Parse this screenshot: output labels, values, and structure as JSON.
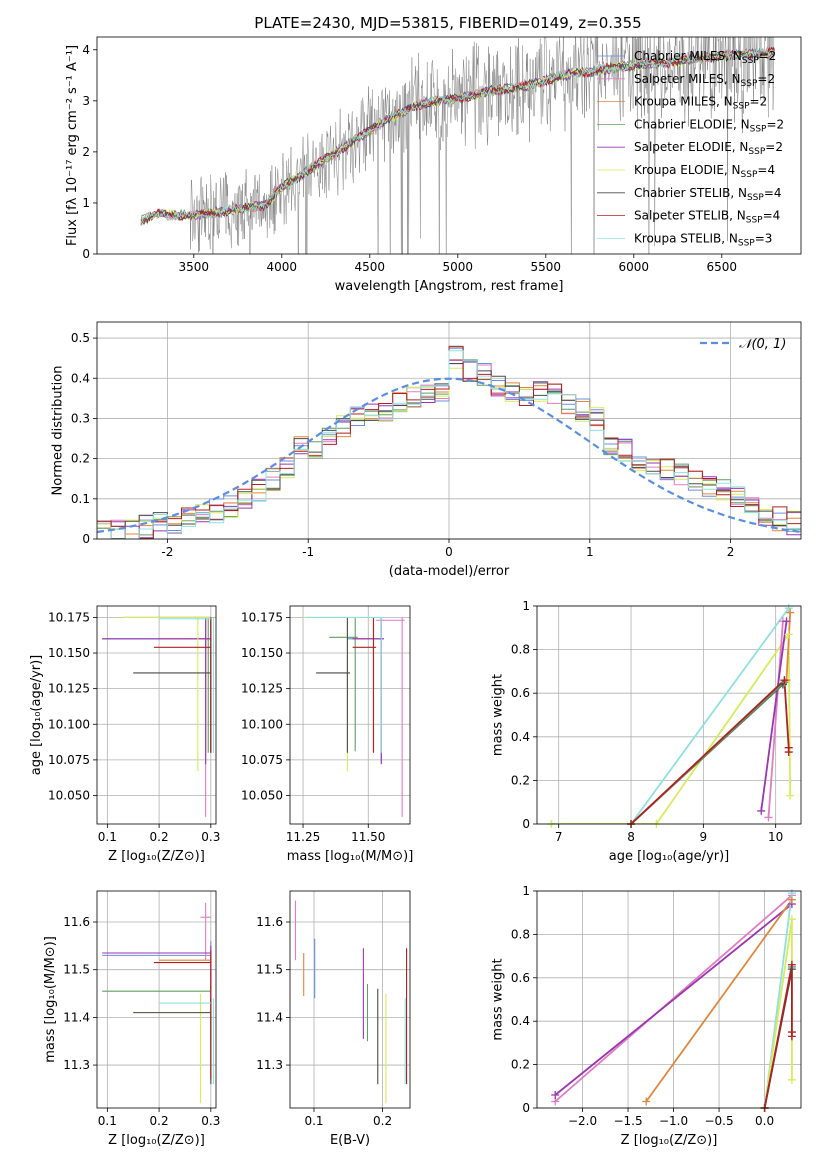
{
  "figure": {
    "title": "PLATE=2430, MJD=53815, FIBERID=0149, z=0.355"
  },
  "colors": {
    "Chabrier MILES": "#6a8fe0",
    "Salpeter MILES": "#e07cc4",
    "Kroupa MILES": "#e0873a",
    "Chabrier ELODIE": "#5f9e64",
    "Salpeter ELODIE": "#9a36b0",
    "Kroupa ELODIE": "#d6ec5a",
    "Chabrier STELIB": "#4a4a4a",
    "Salpeter STELIB": "#b02020",
    "Kroupa STELIB": "#8fe0e0",
    "data": "#808080",
    "normal": "#5b8ee0"
  },
  "chart_data": [
    {
      "id": "spectrum",
      "type": "line",
      "title": "PLATE=2430, MJD=53815, FIBERID=0149, z=0.355",
      "xlabel": "wavelength [Angstrom, rest frame]",
      "ylabel": "Flux [fλ 10⁻¹⁷ erg cm⁻² s⁻¹ A⁻¹]",
      "xlim": [
        2950,
        6950
      ],
      "ylim": [
        0,
        4.25
      ],
      "xticks": [
        3500,
        4000,
        4500,
        5000,
        5500,
        6000,
        6500
      ],
      "yticks": [
        0,
        1,
        2,
        3,
        4
      ],
      "legend": "upper right",
      "legend_entries": [
        "Chabrier MILES, N_SSP=2",
        "Salpeter MILES, N_SSP=2",
        "Kroupa MILES, N_SSP=2",
        "Chabrier ELODIE, N_SSP=2",
        "Salpeter ELODIE, N_SSP=2",
        "Kroupa ELODIE, N_SSP=4",
        "Chabrier STELIB, N_SSP=4",
        "Salpeter STELIB, N_SSP=4",
        "Kroupa STELIB, N_SSP=3"
      ],
      "model_continuum": {
        "x": [
          3200,
          3300,
          3500,
          3700,
          3900,
          4000,
          4200,
          4400,
          4600,
          4800,
          5000,
          5200,
          5400,
          5600,
          5800,
          6000,
          6200,
          6400,
          6600,
          6800
        ],
        "y": [
          0.65,
          0.78,
          0.75,
          0.85,
          0.95,
          1.3,
          1.75,
          2.2,
          2.65,
          2.95,
          3.05,
          3.2,
          3.3,
          3.5,
          3.6,
          3.7,
          3.75,
          3.85,
          3.9,
          3.95
        ]
      },
      "data_range": [
        3200,
        6800
      ]
    },
    {
      "id": "residuals",
      "type": "histogram",
      "xlabel": "(data-model)/error",
      "ylabel": "Normed distribution",
      "xlim": [
        -2.5,
        2.5
      ],
      "ylim": [
        0,
        0.54
      ],
      "xticks": [
        -2,
        -1,
        0,
        1,
        2
      ],
      "yticks": [
        0.0,
        0.1,
        0.2,
        0.3,
        0.4,
        0.5
      ],
      "legend": "upper right",
      "legend_entries": [
        "𝒩(0, 1)"
      ],
      "bin_edges": [
        -2.5,
        -2.4,
        -2.3,
        -2.2,
        -2.1,
        -2.0,
        -1.9,
        -1.8,
        -1.7,
        -1.6,
        -1.5,
        -1.4,
        -1.3,
        -1.2,
        -1.1,
        -1.0,
        -0.9,
        -0.8,
        -0.7,
        -0.6,
        -0.5,
        -0.4,
        -0.3,
        -0.2,
        -0.1,
        0.0,
        0.1,
        0.2,
        0.3,
        0.4,
        0.5,
        0.6,
        0.7,
        0.8,
        0.9,
        1.0,
        1.1,
        1.2,
        1.3,
        1.4,
        1.5,
        1.6,
        1.7,
        1.8,
        1.9,
        2.0,
        2.1,
        2.2,
        2.3,
        2.4,
        2.5
      ],
      "hist_mean": [
        0.02,
        0.02,
        0.02,
        0.03,
        0.04,
        0.04,
        0.05,
        0.06,
        0.07,
        0.08,
        0.1,
        0.12,
        0.15,
        0.18,
        0.24,
        0.22,
        0.26,
        0.28,
        0.3,
        0.31,
        0.32,
        0.34,
        0.35,
        0.36,
        0.37,
        0.45,
        0.42,
        0.41,
        0.38,
        0.36,
        0.35,
        0.37,
        0.36,
        0.33,
        0.32,
        0.3,
        0.24,
        0.22,
        0.2,
        0.18,
        0.17,
        0.16,
        0.14,
        0.13,
        0.12,
        0.1,
        0.08,
        0.06,
        0.05,
        0.04
      ]
    },
    {
      "id": "age-vs-Z",
      "type": "errorbar",
      "xlabel": "Z [log₁₀(Z/Z⊙)]",
      "ylabel": "age  [log₁₀(age/yr)]",
      "xlim": [
        0.08,
        0.31
      ],
      "ylim": [
        10.03,
        10.183
      ],
      "xticks": [
        0.1,
        0.2,
        0.3
      ],
      "xtick_labels": [
        "0.1",
        "0.2",
        "0.3"
      ],
      "yticks": [
        10.05,
        10.075,
        10.1,
        10.125,
        10.15,
        10.175
      ],
      "ytick_labels": [
        "10.050",
        "10.075",
        "10.100",
        "10.125",
        "10.150",
        "10.175"
      ],
      "points": [
        {
          "m": "Chabrier MILES",
          "x": 0.3,
          "y": 10.16,
          "xlo": 0.09,
          "xhi": 0.3,
          "ylo": 10.08,
          "yhi": 10.175
        },
        {
          "m": "Salpeter MILES",
          "x": 0.29,
          "y": 10.175,
          "xlo": 0.2,
          "xhi": 0.3,
          "ylo": 10.035,
          "yhi": 10.175
        },
        {
          "m": "Kroupa MILES",
          "x": 0.29,
          "y": 10.16,
          "xlo": 0.2,
          "xhi": 0.3,
          "ylo": 10.08,
          "yhi": 10.175
        },
        {
          "m": "Chabrier ELODIE",
          "x": 0.295,
          "y": 10.175,
          "xlo": 0.13,
          "xhi": 0.3,
          "ylo": 10.08,
          "yhi": 10.175
        },
        {
          "m": "Salpeter ELODIE",
          "x": 0.29,
          "y": 10.16,
          "xlo": 0.09,
          "xhi": 0.3,
          "ylo": 10.072,
          "yhi": 10.175
        },
        {
          "m": "Kroupa ELODIE",
          "x": 0.275,
          "y": 10.175,
          "xlo": 0.13,
          "xhi": 0.3,
          "ylo": 10.067,
          "yhi": 10.175
        },
        {
          "m": "Chabrier STELIB",
          "x": 0.3,
          "y": 10.136,
          "xlo": 0.15,
          "xhi": 0.3,
          "ylo": 10.08,
          "yhi": 10.175
        },
        {
          "m": "Salpeter STELIB",
          "x": 0.3,
          "y": 10.154,
          "xlo": 0.19,
          "xhi": 0.3,
          "ylo": 10.08,
          "yhi": 10.175
        },
        {
          "m": "Kroupa STELIB",
          "x": 0.305,
          "y": 10.174,
          "xlo": 0.2,
          "xhi": 0.3,
          "ylo": 10.08,
          "yhi": 10.175
        }
      ]
    },
    {
      "id": "age-vs-mass",
      "type": "errorbar",
      "xlabel": "mass [log₁₀(M/M⊙)]",
      "ylabel": "",
      "xlim": [
        11.2,
        11.66
      ],
      "ylim": [
        10.03,
        10.183
      ],
      "xticks": [
        11.25,
        11.5
      ],
      "xtick_labels": [
        "11.25",
        "11.50"
      ],
      "yticks": [
        10.05,
        10.075,
        10.1,
        10.125,
        10.15,
        10.175
      ],
      "ytick_labels": [
        "10.050",
        "10.075",
        "10.100",
        "10.125",
        "10.150",
        "10.175"
      ],
      "points": [
        {
          "m": "Chabrier MILES",
          "x": 11.55,
          "y": 10.16,
          "xlo": 11.42,
          "xhi": 11.56,
          "ylo": 10.073,
          "yhi": 10.175
        },
        {
          "m": "Salpeter MILES",
          "x": 11.63,
          "y": 10.173,
          "xlo": 11.53,
          "xhi": 11.64,
          "ylo": 10.035,
          "yhi": 10.175
        },
        {
          "m": "Kroupa MILES",
          "x": 11.52,
          "y": 10.16,
          "xlo": 11.44,
          "xhi": 11.52,
          "ylo": 10.08,
          "yhi": 10.175
        },
        {
          "m": "Chabrier ELODIE",
          "x": 11.45,
          "y": 10.161,
          "xlo": 11.35,
          "xhi": 11.46,
          "ylo": 10.081,
          "yhi": 10.175
        },
        {
          "m": "Salpeter ELODIE",
          "x": 11.55,
          "y": 10.16,
          "xlo": 11.44,
          "xhi": 11.56,
          "ylo": 10.072,
          "yhi": 10.175
        },
        {
          "m": "Kroupa ELODIE",
          "x": 11.42,
          "y": 10.175,
          "xlo": 11.25,
          "xhi": 11.44,
          "ylo": 10.067,
          "yhi": 10.175
        },
        {
          "m": "Chabrier STELIB",
          "x": 11.42,
          "y": 10.136,
          "xlo": 11.3,
          "xhi": 11.43,
          "ylo": 10.08,
          "yhi": 10.175
        },
        {
          "m": "Salpeter STELIB",
          "x": 11.52,
          "y": 10.154,
          "xlo": 11.44,
          "xhi": 11.53,
          "ylo": 10.08,
          "yhi": 10.175
        },
        {
          "m": "Kroupa STELIB",
          "x": 11.55,
          "y": 10.175,
          "xlo": 11.26,
          "xhi": 11.56,
          "ylo": 10.08,
          "yhi": 10.175
        }
      ]
    },
    {
      "id": "weight-vs-age",
      "type": "line",
      "xlabel": "age  [log₁₀(age/yr)]",
      "ylabel": "mass weight",
      "xlim": [
        6.7,
        10.35
      ],
      "ylim": [
        0,
        1
      ],
      "xticks": [
        7,
        8,
        9,
        10
      ],
      "yticks": [
        0.0,
        0.2,
        0.4,
        0.6,
        0.8,
        1.0
      ],
      "series": [
        {
          "m": "Kroupa STELIB",
          "x": [
            6.9,
            8.0,
            10.18
          ],
          "y": [
            0.0,
            0.0,
            0.99
          ]
        },
        {
          "m": "Kroupa ELODIE",
          "x": [
            6.9,
            8.35,
            10.18,
            10.2
          ],
          "y": [
            0.0,
            0.0,
            0.87,
            0.13
          ]
        },
        {
          "m": "Salpeter MILES",
          "x": [
            9.9,
            10.1
          ],
          "y": [
            0.03,
            0.93
          ]
        },
        {
          "m": "Salpeter ELODIE",
          "x": [
            9.8,
            10.15
          ],
          "y": [
            0.06,
            0.93
          ]
        },
        {
          "m": "Kroupa MILES",
          "x": [
            8.0,
            10.15,
            10.2
          ],
          "y": [
            0.0,
            0.66,
            0.97
          ]
        },
        {
          "m": "Chabrier STELIB",
          "x": [
            8.0,
            10.1
          ],
          "y": [
            0.0,
            0.64
          ]
        },
        {
          "m": "Chabrier ELODIE",
          "x": [
            8.0,
            10.12
          ],
          "y": [
            0.0,
            0.65
          ]
        },
        {
          "m": "Salpeter STELIB",
          "x": [
            8.0,
            10.12,
            10.18,
            10.18
          ],
          "y": [
            0.0,
            0.66,
            0.35,
            0.33
          ]
        }
      ]
    },
    {
      "id": "mass-vs-Z",
      "type": "errorbar",
      "xlabel": "Z [log₁₀(Z/Z⊙)]",
      "ylabel": "mass [log₁₀(M/M⊙)]",
      "xlim": [
        0.08,
        0.31
      ],
      "ylim": [
        11.21,
        11.665
      ],
      "xticks": [
        0.1,
        0.2,
        0.3
      ],
      "xtick_labels": [
        "0.1",
        "0.2",
        "0.3"
      ],
      "yticks": [
        11.3,
        11.4,
        11.5,
        11.6
      ],
      "ytick_labels": [
        "11.3",
        "11.4",
        "11.5",
        "11.6"
      ],
      "points": [
        {
          "m": "Chabrier MILES",
          "x": 0.3,
          "y": 11.53,
          "xlo": 0.09,
          "xhi": 0.3,
          "ylo": 11.45,
          "yhi": 11.56
        },
        {
          "m": "Salpeter MILES",
          "x": 0.29,
          "y": 11.61,
          "xlo": 0.28,
          "xhi": 0.3,
          "ylo": 11.52,
          "yhi": 11.64
        },
        {
          "m": "Kroupa MILES",
          "x": 0.3,
          "y": 11.52,
          "xlo": 0.2,
          "xhi": 0.3,
          "ylo": 11.45,
          "yhi": 11.53
        },
        {
          "m": "Chabrier ELODIE",
          "x": 0.3,
          "y": 11.455,
          "xlo": 0.09,
          "xhi": 0.3,
          "ylo": 11.35,
          "yhi": 11.47
        },
        {
          "m": "Salpeter ELODIE",
          "x": 0.3,
          "y": 11.535,
          "xlo": 0.09,
          "xhi": 0.3,
          "ylo": 11.43,
          "yhi": 11.55
        },
        {
          "m": "Kroupa ELODIE",
          "x": 0.28,
          "y": 11.41,
          "xlo": 0.15,
          "xhi": 0.3,
          "ylo": 11.22,
          "yhi": 11.45
        },
        {
          "m": "Chabrier STELIB",
          "x": 0.3,
          "y": 11.41,
          "xlo": 0.15,
          "xhi": 0.3,
          "ylo": 11.26,
          "yhi": 11.44
        },
        {
          "m": "Salpeter STELIB",
          "x": 0.3,
          "y": 11.515,
          "xlo": 0.19,
          "xhi": 0.3,
          "ylo": 11.27,
          "yhi": 11.54
        },
        {
          "m": "Kroupa STELIB",
          "x": 0.305,
          "y": 11.43,
          "xlo": 0.2,
          "xhi": 0.3,
          "ylo": 11.26,
          "yhi": 11.44
        }
      ]
    },
    {
      "id": "mass-vs-EBV",
      "type": "errorbar",
      "xlabel": "E(B-V)",
      "ylabel": "",
      "xlim": [
        0.065,
        0.24
      ],
      "ylim": [
        11.21,
        11.665
      ],
      "xticks": [
        0.1,
        0.2
      ],
      "xtick_labels": [
        "0.1",
        "0.2"
      ],
      "yticks": [
        11.3,
        11.4,
        11.5,
        11.6
      ],
      "ytick_labels": [
        "11.3",
        "11.4",
        "11.5",
        "11.6"
      ],
      "points": [
        {
          "m": "Chabrier MILES",
          "x": 0.101,
          "y": 11.5,
          "ylo": 11.44,
          "yhi": 11.565
        },
        {
          "m": "Salpeter MILES",
          "x": 0.073,
          "y": 11.58,
          "ylo": 11.52,
          "yhi": 11.645
        },
        {
          "m": "Kroupa MILES",
          "x": 0.085,
          "y": 11.49,
          "ylo": 11.445,
          "yhi": 11.535
        },
        {
          "m": "Chabrier ELODIE",
          "x": 0.178,
          "y": 11.41,
          "ylo": 11.35,
          "yhi": 11.47
        },
        {
          "m": "Salpeter ELODIE",
          "x": 0.172,
          "y": 11.45,
          "ylo": 11.355,
          "yhi": 11.545
        },
        {
          "m": "Kroupa ELODIE",
          "x": 0.205,
          "y": 11.33,
          "ylo": 11.22,
          "yhi": 11.45
        },
        {
          "m": "Chabrier STELIB",
          "x": 0.193,
          "y": 11.37,
          "ylo": 11.26,
          "yhi": 11.46
        },
        {
          "m": "Salpeter STELIB",
          "x": 0.235,
          "y": 11.4,
          "ylo": 11.26,
          "yhi": 11.545
        },
        {
          "m": "Kroupa STELIB",
          "x": 0.233,
          "y": 11.35,
          "ylo": 11.26,
          "yhi": 11.44
        }
      ]
    },
    {
      "id": "weight-vs-Z",
      "type": "line",
      "xlabel": "Z [log₁₀(Z/Z⊙)]",
      "ylabel": "mass weight",
      "xlim": [
        -2.5,
        0.4
      ],
      "ylim": [
        0,
        1
      ],
      "xticks": [
        -2.0,
        -1.5,
        -1.0,
        -0.5,
        0.0
      ],
      "xtick_labels": [
        "−2.0",
        "−1.5",
        "−1.0",
        "−0.5",
        "0.0"
      ],
      "yticks": [
        0.0,
        0.2,
        0.4,
        0.6,
        0.8,
        1.0
      ],
      "series": [
        {
          "m": "Salpeter MILES",
          "x": [
            -2.3,
            0.3
          ],
          "y": [
            0.03,
            0.98
          ]
        },
        {
          "m": "Salpeter ELODIE",
          "x": [
            -2.3,
            0.3
          ],
          "y": [
            0.06,
            0.94
          ]
        },
        {
          "m": "Kroupa MILES",
          "x": [
            -1.3,
            0.3
          ],
          "y": [
            0.03,
            0.96
          ]
        },
        {
          "m": "Kroupa STELIB",
          "x": [
            0.0,
            0.3
          ],
          "y": [
            0.0,
            0.99
          ]
        },
        {
          "m": "Kroupa ELODIE",
          "x": [
            0.0,
            0.3,
            0.3
          ],
          "y": [
            0.0,
            0.87,
            0.13
          ]
        },
        {
          "m": "Chabrier ELODIE",
          "x": [
            0.0,
            0.3
          ],
          "y": [
            0.0,
            0.65
          ]
        },
        {
          "m": "Chabrier STELIB",
          "x": [
            0.0,
            0.3
          ],
          "y": [
            0.0,
            0.64
          ]
        },
        {
          "m": "Salpeter STELIB",
          "x": [
            0.0,
            0.3,
            0.3,
            0.3
          ],
          "y": [
            0.0,
            0.66,
            0.35,
            0.33
          ]
        }
      ]
    }
  ]
}
